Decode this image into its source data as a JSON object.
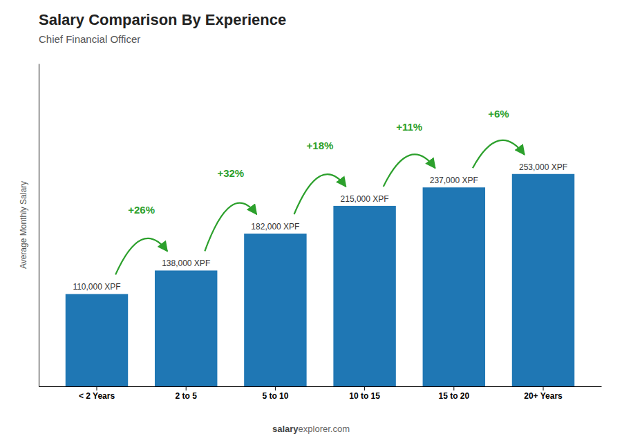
{
  "chart_data": {
    "type": "bar",
    "title": "Salary Comparison By Experience",
    "subtitle": "Chief Financial Officer",
    "ylabel": "Average Monthly Salary",
    "categories": [
      "< 2 Years",
      "2 to 5",
      "5 to 10",
      "10 to 15",
      "15 to 20",
      "20+ Years"
    ],
    "values": [
      110000,
      138000,
      182000,
      215000,
      237000,
      253000
    ],
    "value_labels": [
      "110,000 XPF",
      "138,000 XPF",
      "182,000 XPF",
      "215,000 XPF",
      "237,000 XPF",
      "253,000 XPF"
    ],
    "data_labels": true,
    "annotations": [
      "+26%",
      "+32%",
      "+18%",
      "+11%",
      "+6%"
    ],
    "footer": [
      "salary",
      "explorer.com"
    ],
    "ylim": [
      0,
      384560
    ],
    "tick_labels": "x",
    "grid": false
  }
}
